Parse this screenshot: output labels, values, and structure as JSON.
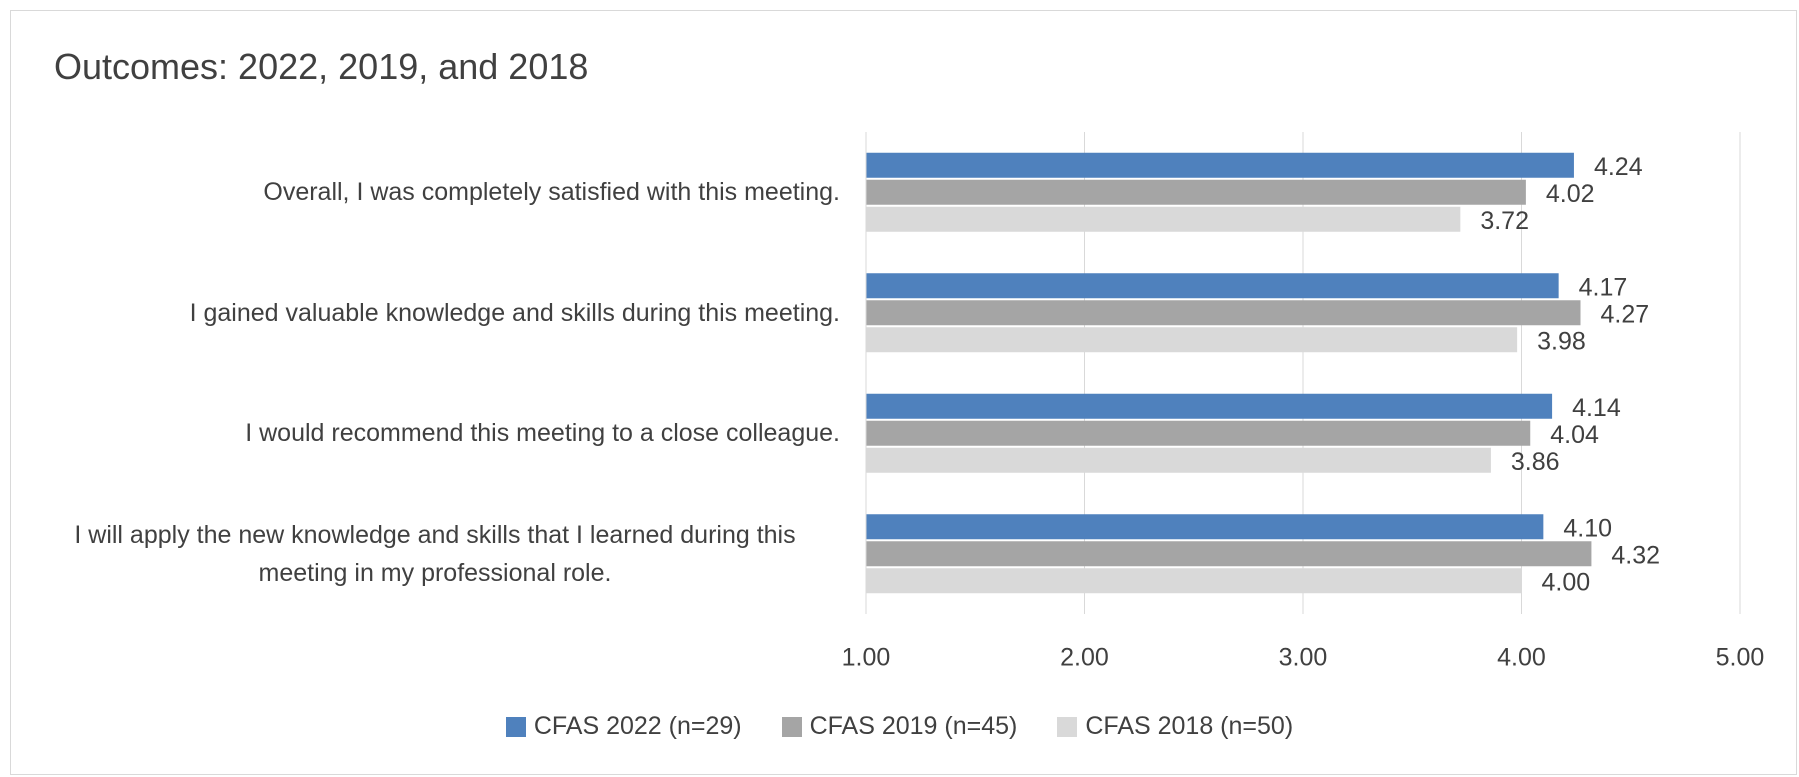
{
  "chart_data": {
    "type": "hbar",
    "title": "Outcomes: 2022, 2019, and 2018",
    "categories": [
      "Overall, I was completely satisfied with this meeting.",
      "I gained valuable knowledge and skills during this meeting.",
      "I would recommend this meeting to a close colleague.",
      "I will apply the new knowledge and skills that I learned during this meeting in my professional role."
    ],
    "series": [
      {
        "name": "CFAS 2022 (n=29)",
        "color": "#4f81bd",
        "values": [
          4.24,
          4.17,
          4.14,
          4.1
        ],
        "value_labels": [
          "4.24",
          "4.17",
          "4.14",
          "4.10"
        ]
      },
      {
        "name": "CFAS 2019 (n=45)",
        "color": "#a5a5a5",
        "values": [
          4.02,
          4.27,
          4.04,
          4.32
        ],
        "value_labels": [
          "4.02",
          "4.27",
          "4.04",
          "4.32"
        ]
      },
      {
        "name": "CFAS 2018 (n=50)",
        "color": "#d9d9d9",
        "values": [
          3.72,
          3.98,
          3.86,
          4.0
        ],
        "value_labels": [
          "3.72",
          "3.98",
          "3.86",
          "4.00"
        ]
      }
    ],
    "xlim": [
      1,
      5
    ],
    "xticks": [
      {
        "value": 1,
        "label": "1.00"
      },
      {
        "value": 2,
        "label": "2.00"
      },
      {
        "value": 3,
        "label": "3.00"
      },
      {
        "value": 4,
        "label": "4.00"
      },
      {
        "value": 5,
        "label": "5.00"
      }
    ],
    "grid": true,
    "legend": "bottom"
  }
}
